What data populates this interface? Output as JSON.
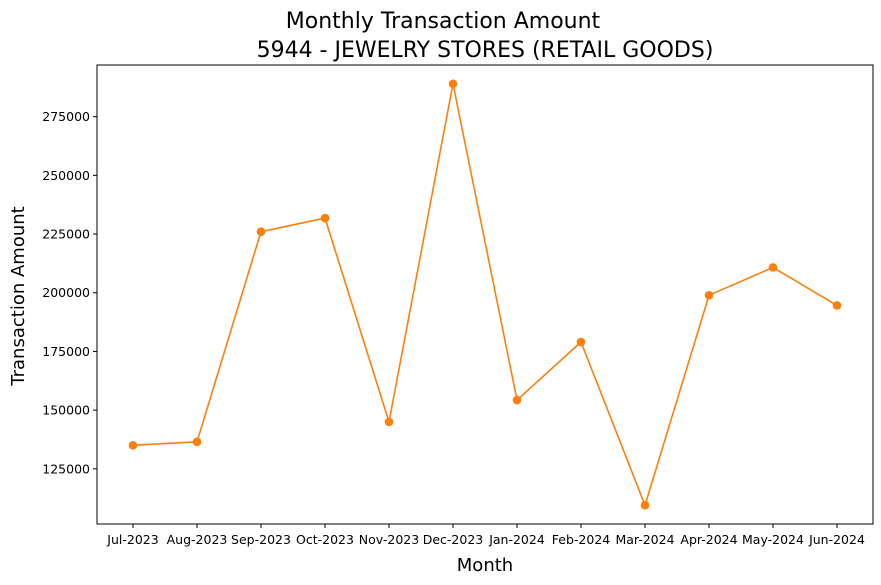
{
  "chart_data": {
    "type": "line",
    "title": "Monthly Transaction Amount",
    "subtitle": "5944 - JEWELRY STORES (RETAIL GOODS)",
    "xlabel": "Month",
    "ylabel": "Transaction Amount",
    "categories": [
      "Jul-2023",
      "Aug-2023",
      "Sep-2023",
      "Oct-2023",
      "Nov-2023",
      "Dec-2023",
      "Jan-2024",
      "Feb-2024",
      "Mar-2024",
      "Apr-2024",
      "May-2024",
      "Jun-2024"
    ],
    "series": [
      {
        "values": [
          135000,
          136500,
          226000,
          231800,
          145000,
          289000,
          154300,
          179000,
          109500,
          198900,
          210800,
          194600
        ],
        "color": "#ff7f0e",
        "marker": "circle"
      }
    ],
    "yticks": [
      125000,
      150000,
      175000,
      200000,
      225000,
      250000,
      275000
    ],
    "ylim": [
      101500,
      297000
    ],
    "grid": false,
    "legend": "none"
  }
}
